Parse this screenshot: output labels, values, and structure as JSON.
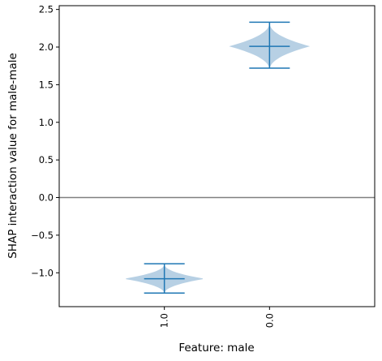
{
  "chart_data": {
    "type": "violin",
    "title": "",
    "xlabel": "Feature: male",
    "ylabel": "SHAP interaction value for male-male",
    "categories": [
      "1.0",
      "0.0"
    ],
    "series": [
      {
        "category": "1.0",
        "min": -1.27,
        "max": -0.88,
        "median": -1.08,
        "center": -1.08
      },
      {
        "category": "0.0",
        "min": 1.72,
        "max": 2.33,
        "median": 2.01,
        "center": 2.01
      }
    ],
    "ylim": [
      -1.45,
      2.55
    ],
    "yticks": [
      -1.0,
      -0.5,
      0.0,
      0.5,
      1.0,
      1.5,
      2.0,
      2.5
    ],
    "ytick_labels": [
      "−1.0",
      "−0.5",
      "0.0",
      "0.5",
      "1.0",
      "1.5",
      "2.0",
      "2.5"
    ],
    "reference_line": {
      "y": 0.0,
      "color": "#808080"
    },
    "violin_fill": "#b3cde3",
    "stat_line_color": "#1f77b4",
    "grid": false,
    "legend": "none"
  }
}
